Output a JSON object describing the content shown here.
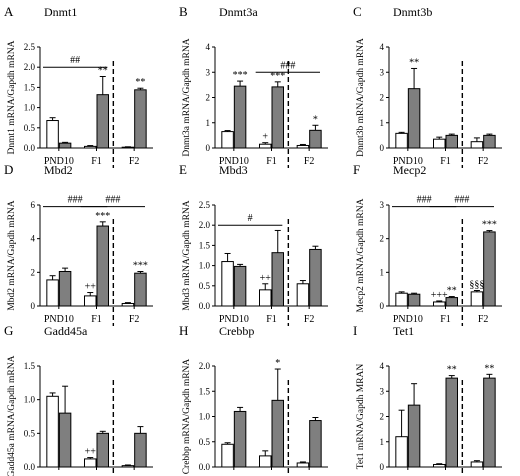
{
  "chart_data": [
    {
      "letter": "A",
      "type": "bar",
      "title": "Dnmt1",
      "ylabel": "Dnmt1 mRNA/Gapdh mRNA",
      "ylim": [
        0,
        2.5
      ],
      "yticks": [
        "0.0",
        "0.5",
        "1.0",
        "1.5",
        "2.0",
        "2.5"
      ],
      "categories": [
        "PND10",
        "F1",
        "F2"
      ],
      "series": [
        {
          "color": "#ffffff",
          "values": [
            0.68,
            0.04,
            0.02
          ],
          "errors": [
            0.07,
            0.02,
            0.01
          ]
        },
        {
          "color": "#7f7f7f",
          "values": [
            0.12,
            1.32,
            1.44
          ],
          "errors": [
            0.02,
            0.45,
            0.04
          ]
        }
      ],
      "bar_marks": [
        {
          "cat": 1,
          "series": 1,
          "text": "**"
        },
        {
          "cat": 2,
          "series": 1,
          "text": "**"
        }
      ],
      "brackets": [
        {
          "from": 0,
          "to": 1,
          "y": 2.0,
          "text": "##"
        }
      ]
    },
    {
      "letter": "B",
      "type": "bar",
      "title": "Dnmt3a",
      "ylabel": "Dnmt3a mRNA/Gapdh mRNA",
      "ylim": [
        0,
        4
      ],
      "yticks": [
        "0",
        "1",
        "2",
        "3",
        "4"
      ],
      "categories": [
        "PND10",
        "F1",
        "F2"
      ],
      "series": [
        {
          "color": "#ffffff",
          "values": [
            0.65,
            0.15,
            0.1
          ],
          "errors": [
            0.04,
            0.06,
            0.04
          ]
        },
        {
          "color": "#7f7f7f",
          "values": [
            2.45,
            2.42,
            0.7
          ],
          "errors": [
            0.2,
            0.2,
            0.2
          ]
        }
      ],
      "bar_marks": [
        {
          "cat": 0,
          "series": 1,
          "text": "***"
        },
        {
          "cat": 1,
          "series": 0,
          "text": "+"
        },
        {
          "cat": 1,
          "series": 1,
          "text": "***"
        },
        {
          "cat": 2,
          "series": 1,
          "text": "*"
        }
      ],
      "brackets": [
        {
          "from": 1,
          "to": 2,
          "y": 3.0,
          "text": "###"
        }
      ]
    },
    {
      "letter": "C",
      "type": "bar",
      "title": "Dnmt3b",
      "ylabel": "Dnmt3b mRNA/Gapdh mRNA",
      "ylim": [
        0,
        4
      ],
      "yticks": [
        "0",
        "1",
        "2",
        "3",
        "4"
      ],
      "categories": [
        "PND10",
        "F1",
        "F2"
      ],
      "series": [
        {
          "color": "#ffffff",
          "values": [
            0.58,
            0.35,
            0.25
          ],
          "errors": [
            0.04,
            0.08,
            0.15
          ]
        },
        {
          "color": "#7f7f7f",
          "values": [
            2.35,
            0.5,
            0.5
          ],
          "errors": [
            0.8,
            0.05,
            0.05
          ]
        }
      ],
      "bar_marks": [
        {
          "cat": 0,
          "series": 1,
          "text": "**"
        }
      ],
      "brackets": []
    },
    {
      "letter": "D",
      "type": "bar",
      "title": "Mbd2",
      "ylabel": "Mbd2 mRNA/Gapdh mRNA",
      "ylim": [
        0,
        6
      ],
      "yticks": [
        "0",
        "2",
        "4",
        "6"
      ],
      "categories": [
        "PND10",
        "F1",
        "F2"
      ],
      "series": [
        {
          "color": "#ffffff",
          "values": [
            1.55,
            0.6,
            0.15
          ],
          "errors": [
            0.25,
            0.2,
            0.05
          ]
        },
        {
          "color": "#7f7f7f",
          "values": [
            2.05,
            4.75,
            1.95
          ],
          "errors": [
            0.2,
            0.25,
            0.1
          ]
        }
      ],
      "bar_marks": [
        {
          "cat": 1,
          "series": 0,
          "text": "++"
        },
        {
          "cat": 1,
          "series": 1,
          "text": "***"
        },
        {
          "cat": 2,
          "series": 1,
          "text": "***"
        }
      ],
      "brackets": [
        {
          "from": 0,
          "to": 1,
          "y": 5.9,
          "text": "###"
        },
        {
          "from": 1,
          "to": 2,
          "y": 5.9,
          "text": "###"
        }
      ]
    },
    {
      "letter": "E",
      "type": "bar",
      "title": "Mbd3",
      "ylabel": "Mbd3 mRNA/Gapdh mRNA",
      "ylim": [
        0,
        2.5
      ],
      "yticks": [
        "0.0",
        "0.5",
        "1.0",
        "1.5",
        "2.0",
        "2.5"
      ],
      "categories": [
        "PND10",
        "F1",
        "F2"
      ],
      "series": [
        {
          "color": "#ffffff",
          "values": [
            1.1,
            0.4,
            0.55
          ],
          "errors": [
            0.2,
            0.15,
            0.08
          ]
        },
        {
          "color": "#7f7f7f",
          "values": [
            0.98,
            1.32,
            1.4
          ],
          "errors": [
            0.05,
            0.55,
            0.08
          ]
        }
      ],
      "bar_marks": [
        {
          "cat": 1,
          "series": 0,
          "text": "++"
        }
      ],
      "brackets": [
        {
          "from": 0,
          "to": 1,
          "y": 2.0,
          "text": "#"
        }
      ]
    },
    {
      "letter": "F",
      "type": "bar",
      "title": "Mecp2",
      "ylabel": "Mecp2 mRNA/Gapdh mRNA",
      "ylim": [
        0,
        3
      ],
      "yticks": [
        "0",
        "1",
        "2",
        "3"
      ],
      "categories": [
        "PND10",
        "F1",
        "F2"
      ],
      "series": [
        {
          "color": "#ffffff",
          "values": [
            0.38,
            0.12,
            0.42
          ],
          "errors": [
            0.04,
            0.03,
            0.04
          ]
        },
        {
          "color": "#7f7f7f",
          "values": [
            0.35,
            0.25,
            2.2
          ],
          "errors": [
            0.03,
            0.03,
            0.04
          ]
        }
      ],
      "bar_marks": [
        {
          "cat": 1,
          "series": 0,
          "text": "+++"
        },
        {
          "cat": 1,
          "series": 1,
          "text": "**"
        },
        {
          "cat": 2,
          "series": 0,
          "text": "§§§"
        },
        {
          "cat": 2,
          "series": 1,
          "text": "***"
        }
      ],
      "brackets": [
        {
          "from": 0,
          "to": 1,
          "y": 2.95,
          "text": "###"
        },
        {
          "from": 1,
          "to": 2,
          "y": 2.95,
          "text": "###"
        }
      ]
    },
    {
      "letter": "G",
      "type": "bar",
      "title": "Gadd45a",
      "ylabel": "Gadd45a mRNA/Gapdh mRNA",
      "ylim": [
        0,
        1.5
      ],
      "yticks": [
        "0.0",
        "0.5",
        "1.0",
        "1.5"
      ],
      "categories": [
        "PND10",
        "F1",
        "F2"
      ],
      "series": [
        {
          "color": "#ffffff",
          "values": [
            1.05,
            0.12,
            0.02
          ],
          "errors": [
            0.05,
            0.02,
            0.01
          ]
        },
        {
          "color": "#7f7f7f",
          "values": [
            0.8,
            0.5,
            0.5
          ],
          "errors": [
            0.4,
            0.03,
            0.1
          ]
        }
      ],
      "bar_marks": [
        {
          "cat": 1,
          "series": 0,
          "text": "++"
        }
      ],
      "brackets": []
    },
    {
      "letter": "H",
      "type": "bar",
      "title": "Crebbp",
      "ylabel": "Crebbp mRNA/Gapdh mRNA",
      "ylim": [
        0,
        2.0
      ],
      "yticks": [
        "0.0",
        "0.5",
        "1.0",
        "1.5",
        "2.0"
      ],
      "categories": [
        "PND10",
        "F1",
        "F2"
      ],
      "series": [
        {
          "color": "#ffffff",
          "values": [
            0.45,
            0.22,
            0.08
          ],
          "errors": [
            0.03,
            0.1,
            0.02
          ]
        },
        {
          "color": "#7f7f7f",
          "values": [
            1.1,
            1.32,
            0.92
          ],
          "errors": [
            0.08,
            0.62,
            0.06
          ]
        }
      ],
      "bar_marks": [
        {
          "cat": 1,
          "series": 1,
          "text": "*"
        }
      ],
      "brackets": []
    },
    {
      "letter": "I",
      "type": "bar",
      "title": "Tet1",
      "ylabel": "Tet1 mRNA/Gapdh MRAN",
      "ylim": [
        0,
        4
      ],
      "yticks": [
        "0",
        "1",
        "2",
        "3",
        "4"
      ],
      "categories": [
        "PND10",
        "F1",
        "F2"
      ],
      "series": [
        {
          "color": "#ffffff",
          "values": [
            1.2,
            0.1,
            0.2
          ],
          "errors": [
            1.05,
            0.03,
            0.05
          ]
        },
        {
          "color": "#7f7f7f",
          "values": [
            2.45,
            3.52,
            3.52
          ],
          "errors": [
            0.85,
            0.1,
            0.15
          ]
        }
      ],
      "bar_marks": [
        {
          "cat": 1,
          "series": 1,
          "text": "**"
        },
        {
          "cat": 2,
          "series": 1,
          "text": "**"
        }
      ],
      "brackets": []
    }
  ]
}
